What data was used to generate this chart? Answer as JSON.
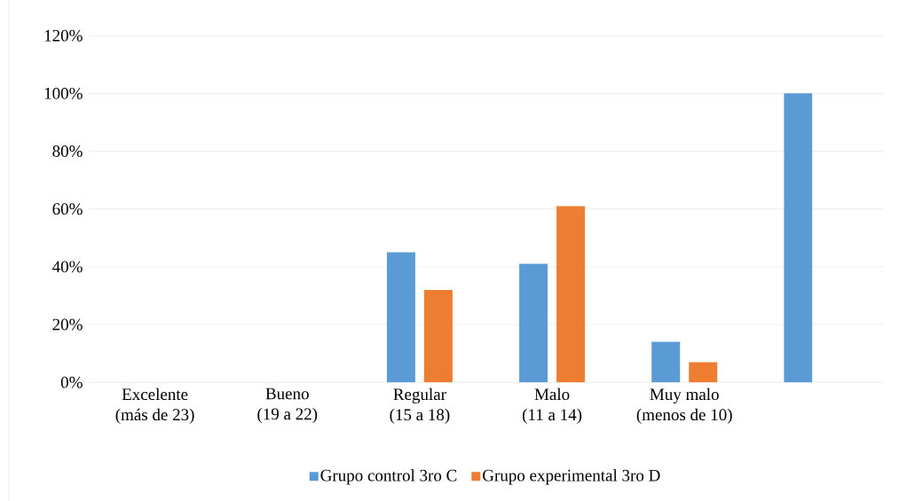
{
  "chart_data": {
    "type": "bar",
    "categories": [
      "Excelente (más de 23)",
      "Bueno (19 a 22)",
      "Regular (15 a 18)",
      "Malo (11 a 14)",
      "Muy malo (menos de 10)",
      null
    ],
    "series": [
      {
        "name": "Grupo control 3ro C",
        "color": "#5b9bd5",
        "values": [
          0,
          0,
          45,
          41,
          14,
          100
        ]
      },
      {
        "name": "Grupo experimental 3ro D",
        "color": "#ed7d31",
        "values": [
          0,
          0,
          32,
          61,
          7,
          null
        ]
      }
    ],
    "ylim": [
      0,
      120
    ],
    "yticks": [
      {
        "value": 0,
        "label": "0%"
      },
      {
        "value": 20,
        "label": "20%"
      },
      {
        "value": 40,
        "label": "40%"
      },
      {
        "value": 60,
        "label": "60%"
      },
      {
        "value": 80,
        "label": "80%"
      },
      {
        "value": 100,
        "label": "100%"
      },
      {
        "value": 120,
        "label": "120%"
      }
    ],
    "grid": "y",
    "legend": "bottom"
  }
}
